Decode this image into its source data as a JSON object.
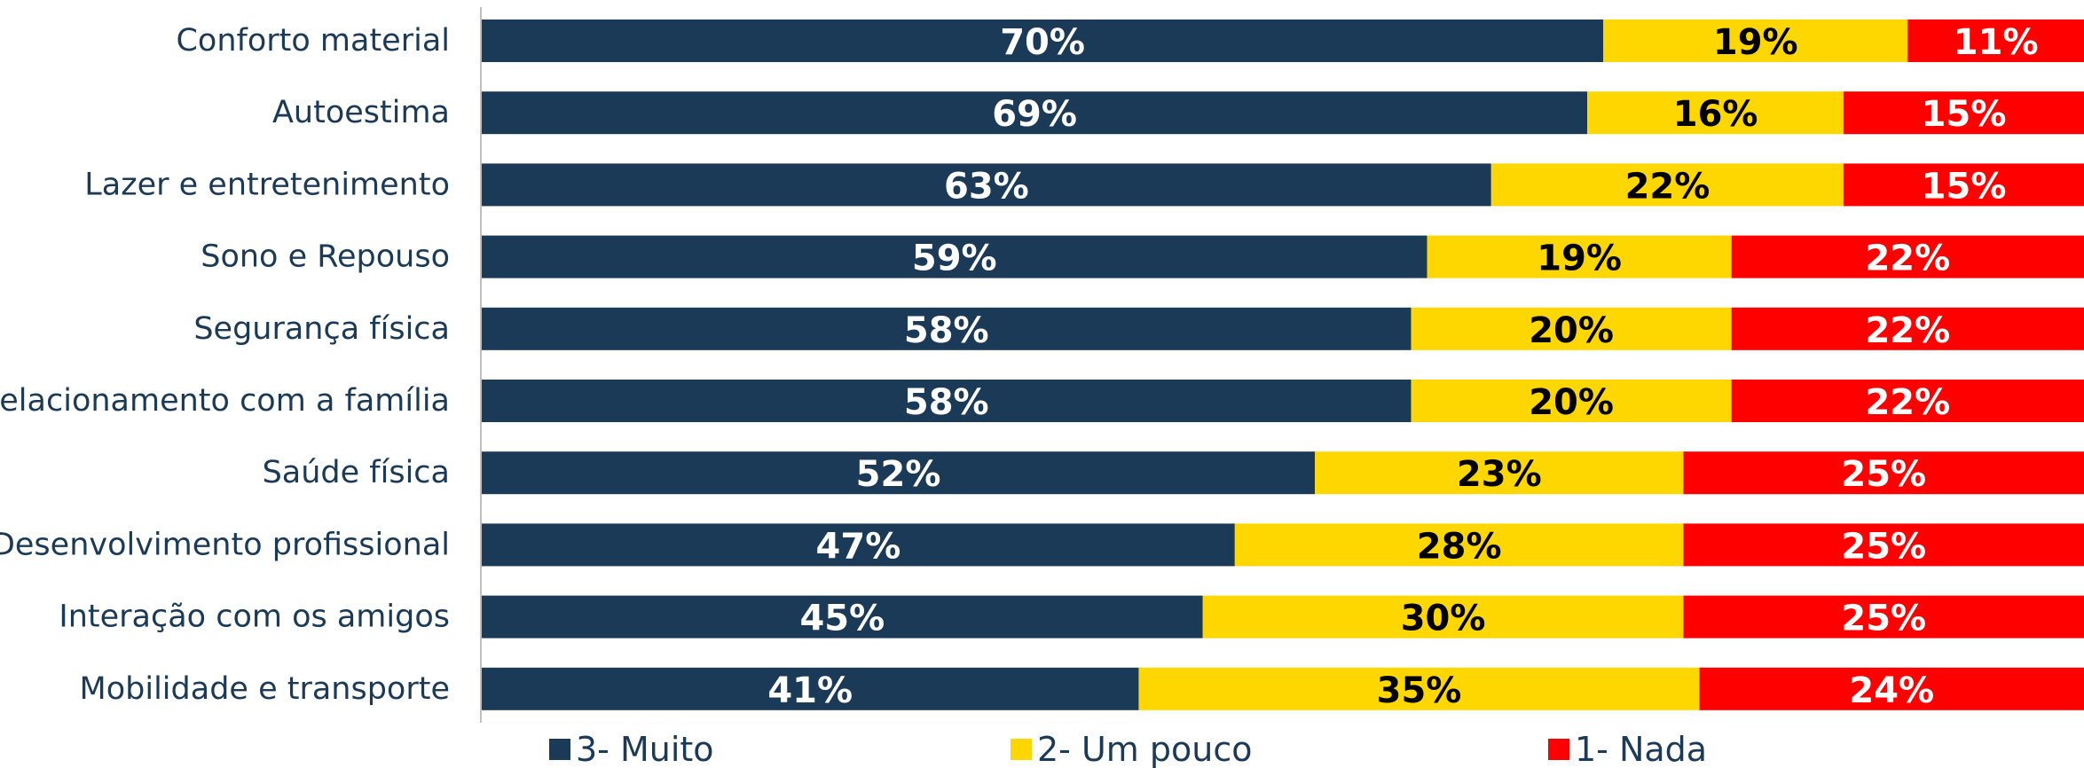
{
  "chart_data": {
    "type": "stacked_barh",
    "categories": [
      "Conforto material",
      "Autoestima",
      "Lazer e entretenimento",
      "Sono e Repouso",
      "Segurança física",
      "Relacionamento com a família",
      "Saúde física",
      "Desenvolvimento profissional",
      "Interação com os amigos",
      "Mobilidade e transporte"
    ],
    "series": [
      {
        "name": "3- Muito",
        "color": "#1b3a57",
        "label_color": "#ffffff",
        "values": [
          70,
          69,
          63,
          59,
          58,
          58,
          52,
          47,
          45,
          41
        ],
        "value_labels": [
          "70%",
          "69%",
          "63%",
          "59%",
          "58%",
          "58%",
          "52%",
          "47%",
          "45%",
          "41%"
        ]
      },
      {
        "name": "2- Um pouco",
        "color": "#ffd700",
        "label_color": "#000000",
        "values": [
          19,
          16,
          22,
          19,
          20,
          20,
          23,
          28,
          30,
          35
        ],
        "value_labels": [
          "19%",
          "16%",
          "22%",
          "19%",
          "20%",
          "20%",
          "23%",
          "28%",
          "30%",
          "35%"
        ]
      },
      {
        "name": "1- Nada",
        "color": "#ff0000",
        "label_color": "#ffffff",
        "values": [
          11,
          15,
          15,
          22,
          22,
          22,
          25,
          25,
          25,
          24
        ],
        "value_labels": [
          "11%",
          "15%",
          "15%",
          "22%",
          "22%",
          "22%",
          "25%",
          "25%",
          "25%",
          "24%"
        ]
      }
    ],
    "xlim": [
      0,
      100
    ],
    "legend": "bottom"
  }
}
